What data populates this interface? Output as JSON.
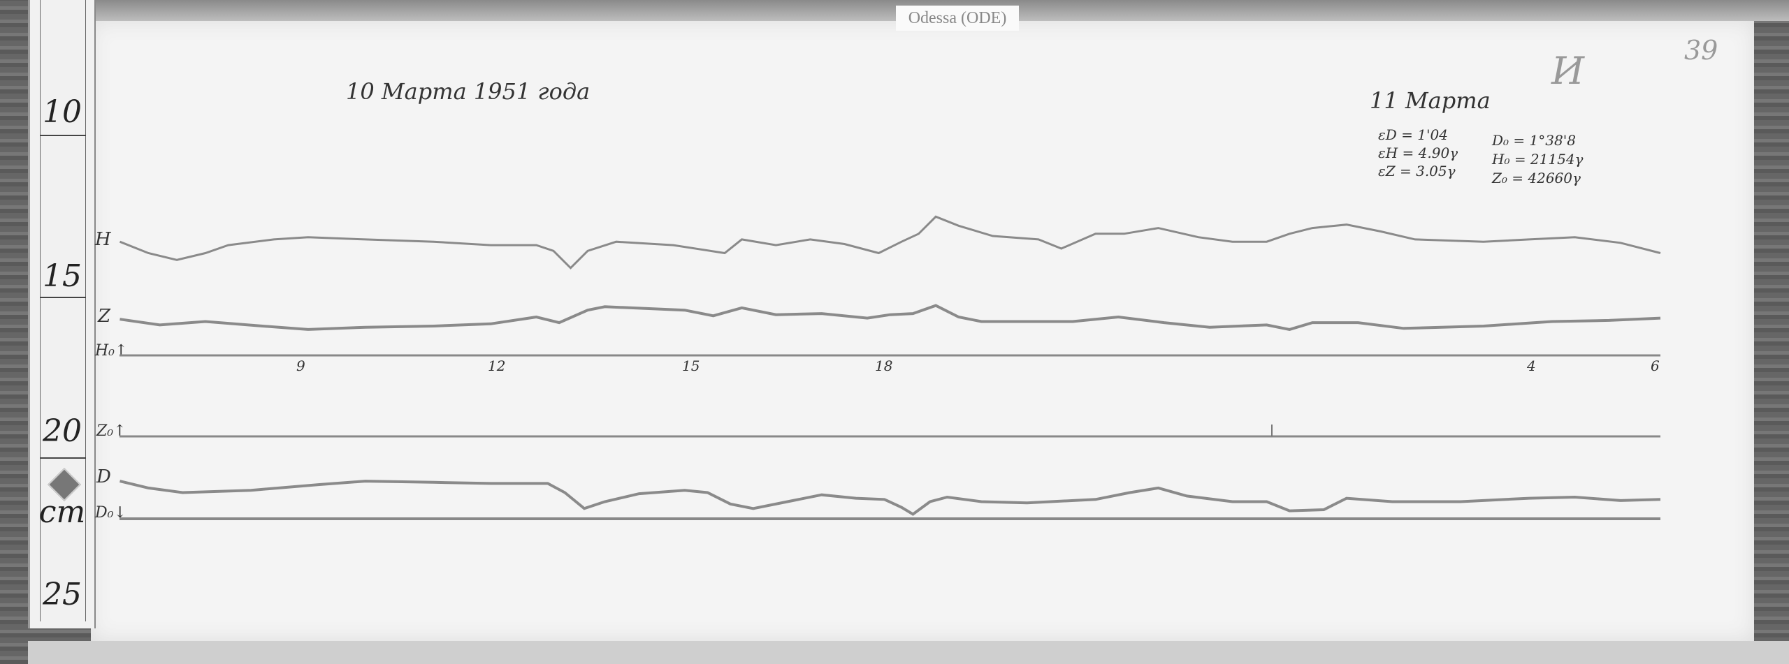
{
  "station_label": "Odessa (ODE)",
  "date_left": "10 Марта 1951 года",
  "date_right": "11 Марта",
  "page_number": "39",
  "corner_mark": "И",
  "constants_left": [
    "εD = 1'04",
    "εH = 4.90γ",
    "εZ = 3.05γ"
  ],
  "constants_right": [
    "D₀ = 1°38'8",
    "H₀ = 21154γ",
    "Z₀ = 42660γ"
  ],
  "trace_labels": {
    "h": "H",
    "z": "Z",
    "h0": "H₀↑",
    "z0": "Z₀↑",
    "d": "D",
    "d0": "D₀↓"
  },
  "hour_ticks": [
    "9",
    "12",
    "15",
    "18",
    "4",
    "6"
  ],
  "ruler": {
    "marks": [
      "10",
      "15",
      "20",
      "25"
    ],
    "unit": "cm"
  }
}
